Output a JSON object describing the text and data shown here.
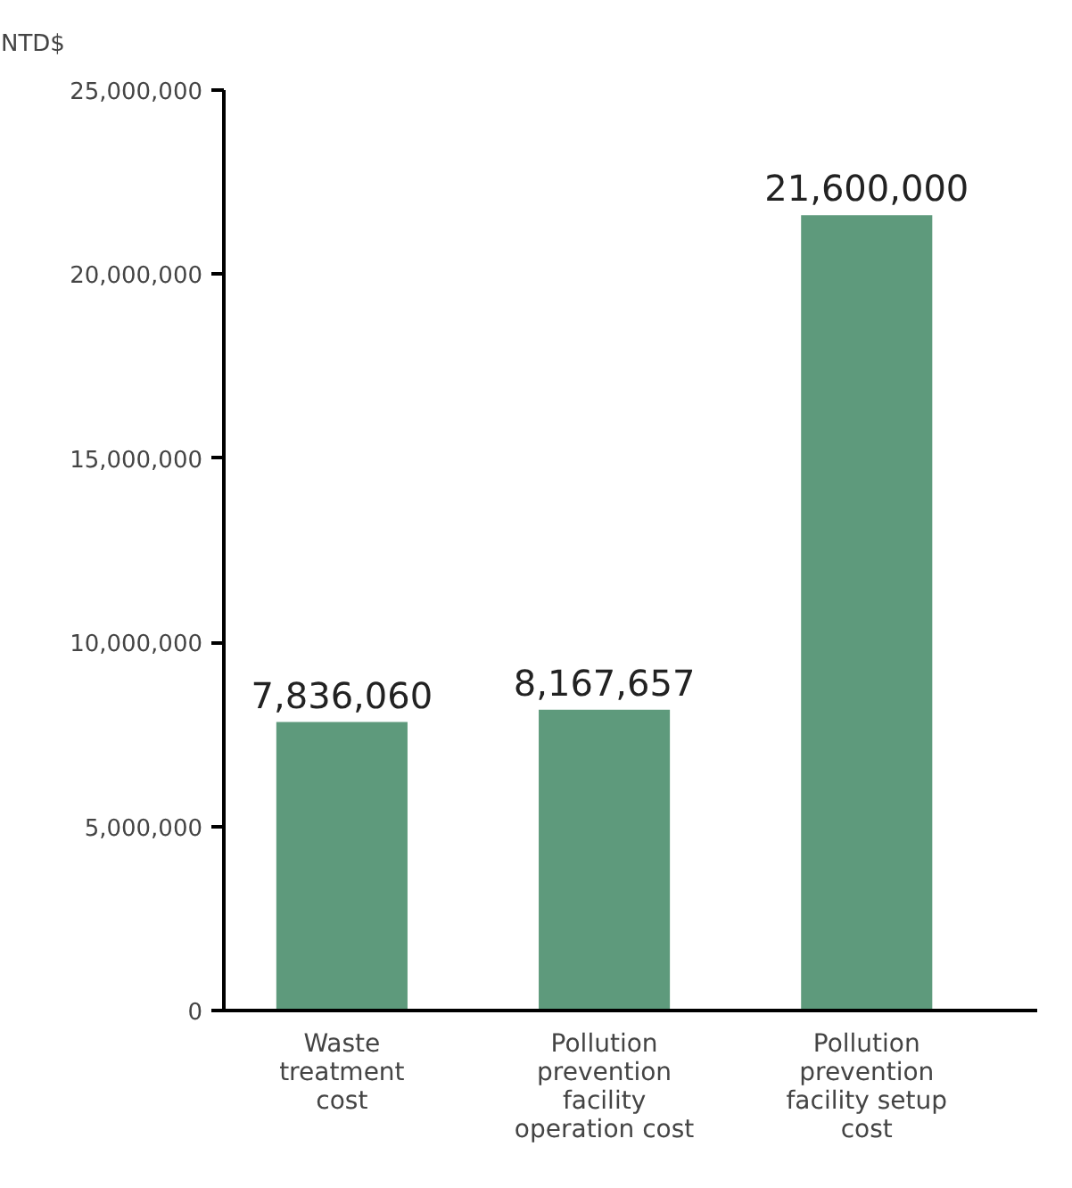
{
  "chart_data": {
    "type": "bar",
    "ylabel": "NTD$",
    "categories": [
      "Waste\ntreatment\ncost",
      "Pollution\nprevention\nfacility\noperation cost",
      "Pollution\nprevention\nfacility setup\ncost"
    ],
    "values": [
      7836060,
      8167657,
      21600000
    ],
    "color": "#5e9a7c",
    "ylim": [
      0,
      25000000
    ],
    "yticks": [
      {
        "value": 0,
        "label": "0"
      },
      {
        "value": 5000000,
        "label": "5,000,000"
      },
      {
        "value": 10000000,
        "label": "10,000,000"
      },
      {
        "value": 15000000,
        "label": "15,000,000"
      },
      {
        "value": 20000000,
        "label": "20,000,000"
      },
      {
        "value": 25000000,
        "label": "25,000,000"
      }
    ],
    "value_labels": [
      "7,836,060",
      "8,167,657",
      "21,600,000"
    ],
    "grid": false
  }
}
